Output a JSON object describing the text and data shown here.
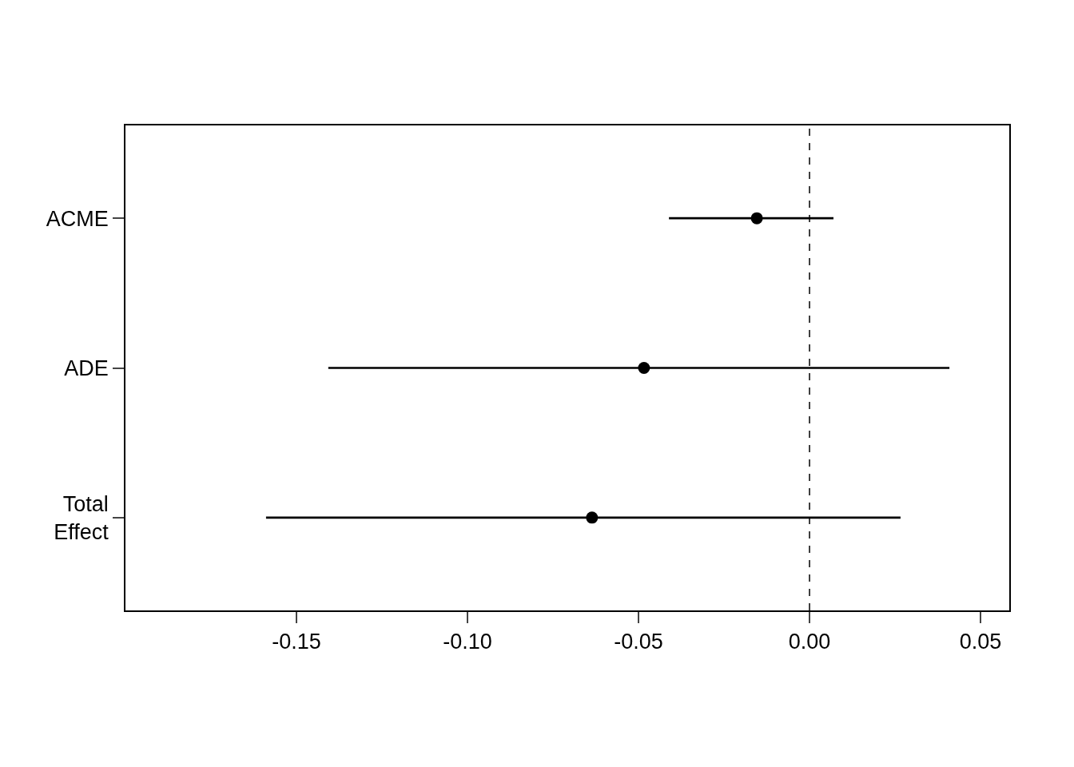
{
  "chart_data": {
    "type": "scatter",
    "orientation": "horizontal",
    "categories": [
      "ACME",
      "ADE",
      "Total\nEffect"
    ],
    "values": [
      -0.0154,
      -0.0484,
      -0.0636
    ],
    "errors": [
      [
        -0.0411,
        0.007
      ],
      [
        -0.1407,
        0.0409
      ],
      [
        -0.1589,
        0.0266
      ]
    ],
    "color": "#000000",
    "marker": "circle",
    "xlim": [
      -0.2,
      0.0584
    ],
    "xticks": [
      {
        "value": -0.15,
        "label": "-0.15"
      },
      {
        "value": -0.1,
        "label": "-0.10"
      },
      {
        "value": -0.05,
        "label": "-0.05"
      },
      {
        "value": 0,
        "label": "0.00"
      },
      {
        "value": 0.05,
        "label": "0.05"
      }
    ],
    "ref_lines": [
      {
        "axis": "x",
        "value": 0,
        "color": "#000000",
        "line_style": "dashed"
      }
    ]
  }
}
